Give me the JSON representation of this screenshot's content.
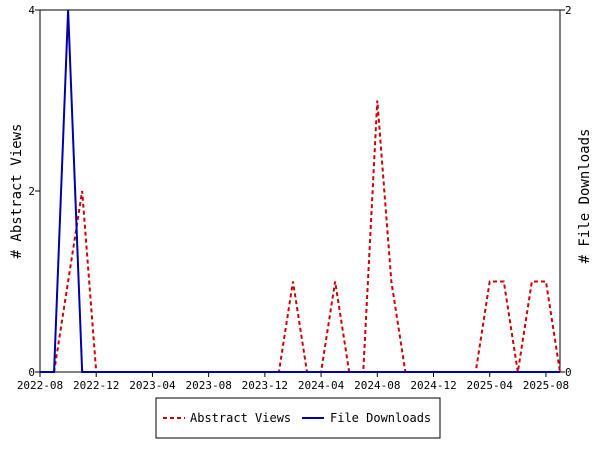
{
  "chart_data": {
    "type": "line",
    "x": [
      "2022-08",
      "2022-09",
      "2022-10",
      "2022-11",
      "2022-12",
      "2023-01",
      "2023-02",
      "2023-03",
      "2023-04",
      "2023-05",
      "2023-06",
      "2023-07",
      "2023-08",
      "2023-09",
      "2023-10",
      "2023-11",
      "2023-12",
      "2024-01",
      "2024-02",
      "2024-03",
      "2024-04",
      "2024-05",
      "2024-06",
      "2024-07",
      "2024-08",
      "2024-09",
      "2024-10",
      "2024-11",
      "2024-12",
      "2025-01",
      "2025-02",
      "2025-03",
      "2025-04",
      "2025-05",
      "2025-06",
      "2025-07",
      "2025-08",
      "2025-09"
    ],
    "x_tick_labels": [
      "2022-08",
      "2022-12",
      "2023-04",
      "2023-08",
      "2023-12",
      "2024-04",
      "2024-08",
      "2024-12",
      "2025-04",
      "2025-08"
    ],
    "series": [
      {
        "name": "Abstract Views",
        "axis": "left",
        "color": "#cc0000",
        "style": "dashed",
        "values": [
          0,
          0,
          1,
          2,
          0,
          0,
          0,
          0,
          0,
          0,
          0,
          0,
          0,
          0,
          0,
          0,
          0,
          0,
          1,
          0,
          0,
          1,
          0,
          0,
          3,
          1,
          0,
          0,
          0,
          0,
          0,
          0,
          1,
          1,
          0,
          1,
          1,
          0
        ]
      },
      {
        "name": "File Downloads",
        "axis": "right",
        "color": "#0000aa",
        "style": "solid",
        "values": [
          0,
          0,
          2,
          0,
          0,
          0,
          0,
          0,
          0,
          0,
          0,
          0,
          0,
          0,
          0,
          0,
          0,
          0,
          0,
          0,
          0,
          0,
          0,
          0,
          0,
          0,
          0,
          0,
          0,
          0,
          0,
          0,
          0,
          0,
          0,
          0,
          0,
          0
        ]
      }
    ],
    "ylabel_left": "# Abstract Views",
    "ylabel_right": "# File Downloads",
    "ylim_left": [
      0,
      4
    ],
    "ylim_right": [
      0,
      2
    ],
    "y_ticks_left": [
      "0",
      "2",
      "4"
    ],
    "y_ticks_right": [
      "0",
      "2"
    ],
    "grid": false,
    "legend_position": "bottom"
  }
}
